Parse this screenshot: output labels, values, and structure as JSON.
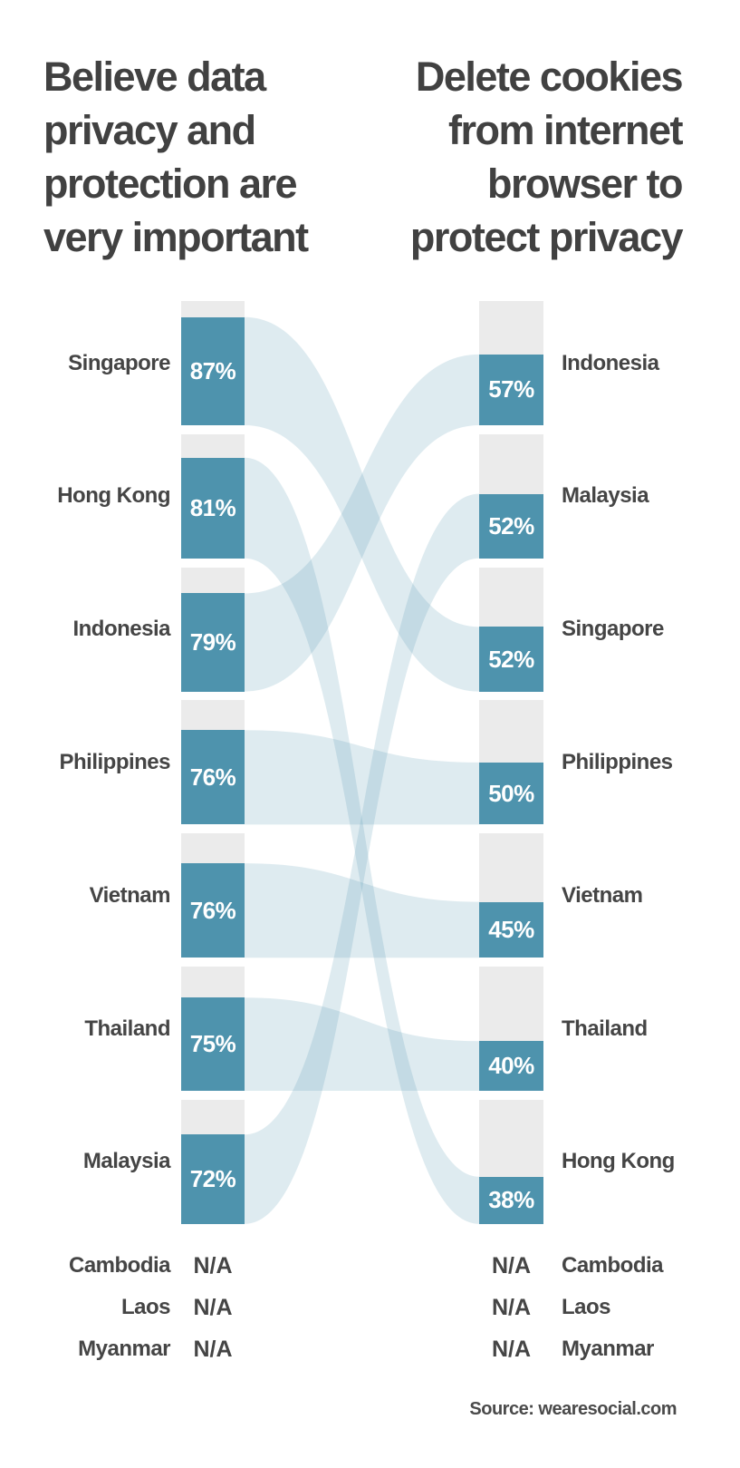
{
  "chart_data": {
    "type": "bar",
    "subtype": "paired-ranked-bars-with-flow-ribbons",
    "left": {
      "title": "Believe data\nprivacy and\nprotection are\nvery important",
      "rows": [
        {
          "country": "Singapore",
          "value": 87,
          "label": "87%"
        },
        {
          "country": "Hong Kong",
          "value": 81,
          "label": "81%"
        },
        {
          "country": "Indonesia",
          "value": 79,
          "label": "79%"
        },
        {
          "country": "Philippines",
          "value": 76,
          "label": "76%"
        },
        {
          "country": "Vietnam",
          "value": 76,
          "label": "76%"
        },
        {
          "country": "Thailand",
          "value": 75,
          "label": "75%"
        },
        {
          "country": "Malaysia",
          "value": 72,
          "label": "72%"
        }
      ]
    },
    "right": {
      "title": "Delete cookies\nfrom internet\nbrowser to\nprotect privacy",
      "rows": [
        {
          "country": "Indonesia",
          "value": 57,
          "label": "57%"
        },
        {
          "country": "Malaysia",
          "value": 52,
          "label": "52%"
        },
        {
          "country": "Singapore",
          "value": 52,
          "label": "52%"
        },
        {
          "country": "Philippines",
          "value": 50,
          "label": "50%"
        },
        {
          "country": "Vietnam",
          "value": 45,
          "label": "45%"
        },
        {
          "country": "Thailand",
          "value": 40,
          "label": "40%"
        },
        {
          "country": "Hong Kong",
          "value": 38,
          "label": "38%"
        }
      ]
    },
    "na_rows": [
      {
        "country": "Cambodia",
        "left": "N/A",
        "right": "N/A"
      },
      {
        "country": "Laos",
        "left": "N/A",
        "right": "N/A"
      },
      {
        "country": "Myanmar",
        "left": "N/A",
        "right": "N/A"
      }
    ],
    "source": "Source: wearesocial.com",
    "value_scale": [
      0,
      100
    ],
    "colors": {
      "bar_fill": "#4e93ad",
      "bar_track": "#ebebeb",
      "ribbon": "#4e93ad",
      "ribbon_opacity": 0.19,
      "title_text": "#414141",
      "label_text": "#454545",
      "value_text": "#ffffff"
    }
  }
}
